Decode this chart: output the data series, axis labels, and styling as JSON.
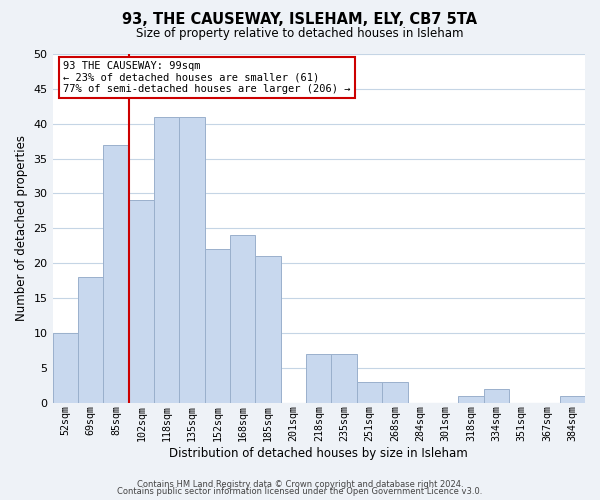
{
  "title": "93, THE CAUSEWAY, ISLEHAM, ELY, CB7 5TA",
  "subtitle": "Size of property relative to detached houses in Isleham",
  "xlabel": "Distribution of detached houses by size in Isleham",
  "ylabel": "Number of detached properties",
  "bin_labels": [
    "52sqm",
    "69sqm",
    "85sqm",
    "102sqm",
    "118sqm",
    "135sqm",
    "152sqm",
    "168sqm",
    "185sqm",
    "201sqm",
    "218sqm",
    "235sqm",
    "251sqm",
    "268sqm",
    "284sqm",
    "301sqm",
    "318sqm",
    "334sqm",
    "351sqm",
    "367sqm",
    "384sqm"
  ],
  "bar_values": [
    10,
    18,
    37,
    29,
    41,
    41,
    22,
    24,
    21,
    0,
    7,
    7,
    3,
    3,
    0,
    0,
    1,
    2,
    0,
    0,
    1
  ],
  "bar_color": "#c8d8ee",
  "bar_edgecolor": "#9ab0cc",
  "reference_line_color": "#cc0000",
  "reference_line_bin_index": 3,
  "annotation_title": "93 THE CAUSEWAY: 99sqm",
  "annotation_line1": "← 23% of detached houses are smaller (61)",
  "annotation_line2": "77% of semi-detached houses are larger (206) →",
  "annotation_box_facecolor": "#ffffff",
  "annotation_box_edgecolor": "#cc0000",
  "ylim": [
    0,
    50
  ],
  "yticks": [
    0,
    5,
    10,
    15,
    20,
    25,
    30,
    35,
    40,
    45,
    50
  ],
  "footer1": "Contains HM Land Registry data © Crown copyright and database right 2024.",
  "footer2": "Contains public sector information licensed under the Open Government Licence v3.0.",
  "background_color": "#eef2f7",
  "plot_background_color": "#ffffff",
  "grid_color": "#c5d5e5"
}
